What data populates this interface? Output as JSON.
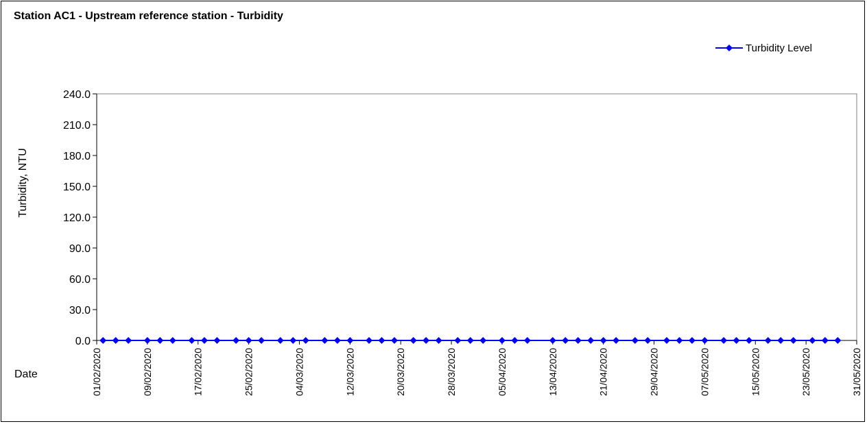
{
  "chart_data": {
    "type": "line",
    "title": "Station AC1 - Upstream reference station - Turbidity",
    "ylabel": "Turbidity, NTU",
    "xlabel": "Date",
    "ylim": [
      0,
      240
    ],
    "xlim": [
      "01/02/2020",
      "31/05/2020"
    ],
    "y_ticks": [
      "0.0",
      "30.0",
      "60.0",
      "90.0",
      "120.0",
      "150.0",
      "180.0",
      "210.0",
      "240.0"
    ],
    "x_ticks": [
      "01/02/2020",
      "09/02/2020",
      "17/02/2020",
      "25/02/2020",
      "04/03/2020",
      "12/03/2020",
      "20/03/2020",
      "28/03/2020",
      "05/04/2020",
      "13/04/2020",
      "21/04/2020",
      "29/04/2020",
      "07/05/2020",
      "15/05/2020",
      "23/05/2020",
      "31/05/2020"
    ],
    "grid": false,
    "legend_position": "top-right",
    "series": [
      {
        "name": "Turbidity Level",
        "color": "#0000ff",
        "marker": "diamond",
        "points": [
          {
            "x": "02/02/2020",
            "y": 0.0
          },
          {
            "x": "04/02/2020",
            "y": 0.0
          },
          {
            "x": "06/02/2020",
            "y": 0.0
          },
          {
            "x": "09/02/2020",
            "y": 0.0
          },
          {
            "x": "11/02/2020",
            "y": 0.0
          },
          {
            "x": "13/02/2020",
            "y": 0.0
          },
          {
            "x": "16/02/2020",
            "y": 0.0
          },
          {
            "x": "18/02/2020",
            "y": 0.0
          },
          {
            "x": "20/02/2020",
            "y": 0.0
          },
          {
            "x": "23/02/2020",
            "y": 0.0
          },
          {
            "x": "25/02/2020",
            "y": 0.0
          },
          {
            "x": "27/02/2020",
            "y": 0.0
          },
          {
            "x": "01/03/2020",
            "y": 0.0
          },
          {
            "x": "03/03/2020",
            "y": 0.0
          },
          {
            "x": "05/03/2020",
            "y": 0.0
          },
          {
            "x": "08/03/2020",
            "y": 0.0
          },
          {
            "x": "10/03/2020",
            "y": 0.0
          },
          {
            "x": "12/03/2020",
            "y": 0.0
          },
          {
            "x": "15/03/2020",
            "y": 0.0
          },
          {
            "x": "17/03/2020",
            "y": 0.0
          },
          {
            "x": "19/03/2020",
            "y": 0.0
          },
          {
            "x": "22/03/2020",
            "y": 0.0
          },
          {
            "x": "24/03/2020",
            "y": 0.0
          },
          {
            "x": "26/03/2020",
            "y": 0.0
          },
          {
            "x": "29/03/2020",
            "y": 0.0
          },
          {
            "x": "31/03/2020",
            "y": 0.0
          },
          {
            "x": "02/04/2020",
            "y": 0.0
          },
          {
            "x": "05/04/2020",
            "y": 0.0
          },
          {
            "x": "07/04/2020",
            "y": 0.0
          },
          {
            "x": "09/04/2020",
            "y": 0.0
          },
          {
            "x": "13/04/2020",
            "y": 0.0
          },
          {
            "x": "15/04/2020",
            "y": 0.0
          },
          {
            "x": "17/04/2020",
            "y": 0.0
          },
          {
            "x": "19/04/2020",
            "y": 0.0
          },
          {
            "x": "21/04/2020",
            "y": 0.0
          },
          {
            "x": "23/04/2020",
            "y": 0.0
          },
          {
            "x": "26/04/2020",
            "y": 0.0
          },
          {
            "x": "28/04/2020",
            "y": 0.0
          },
          {
            "x": "01/05/2020",
            "y": 0.0
          },
          {
            "x": "03/05/2020",
            "y": 0.0
          },
          {
            "x": "05/05/2020",
            "y": 0.0
          },
          {
            "x": "07/05/2020",
            "y": 0.0
          },
          {
            "x": "10/05/2020",
            "y": 0.0
          },
          {
            "x": "12/05/2020",
            "y": 0.0
          },
          {
            "x": "14/05/2020",
            "y": 0.0
          },
          {
            "x": "17/05/2020",
            "y": 0.0
          },
          {
            "x": "19/05/2020",
            "y": 0.0
          },
          {
            "x": "21/05/2020",
            "y": 0.0
          },
          {
            "x": "24/05/2020",
            "y": 0.0
          },
          {
            "x": "26/05/2020",
            "y": 0.0
          },
          {
            "x": "28/05/2020",
            "y": 0.0
          }
        ]
      }
    ]
  }
}
